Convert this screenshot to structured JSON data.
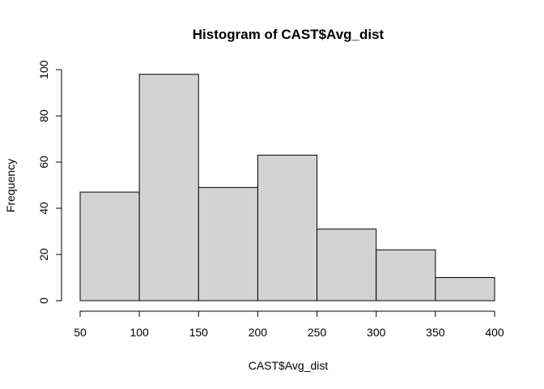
{
  "chart_data": {
    "type": "bar",
    "title": "Histogram of CAST$Avg_dist",
    "xlabel": "CAST$Avg_dist",
    "ylabel": "Frequency",
    "bins": [
      {
        "start": 50,
        "end": 100,
        "count": 47
      },
      {
        "start": 100,
        "end": 150,
        "count": 98
      },
      {
        "start": 150,
        "end": 200,
        "count": 49
      },
      {
        "start": 200,
        "end": 250,
        "count": 63
      },
      {
        "start": 250,
        "end": 300,
        "count": 31
      },
      {
        "start": 300,
        "end": 350,
        "count": 22
      },
      {
        "start": 350,
        "end": 400,
        "count": 10
      }
    ],
    "x_ticks": [
      "50",
      "100",
      "150",
      "200",
      "250",
      "300",
      "350",
      "400"
    ],
    "y_ticks": [
      "0",
      "20",
      "40",
      "60",
      "80",
      "100"
    ],
    "xlim": [
      50,
      400
    ],
    "ylim": [
      0,
      100
    ],
    "grid": false,
    "bar_color": "#d3d3d3",
    "edge_color": "#000000"
  }
}
